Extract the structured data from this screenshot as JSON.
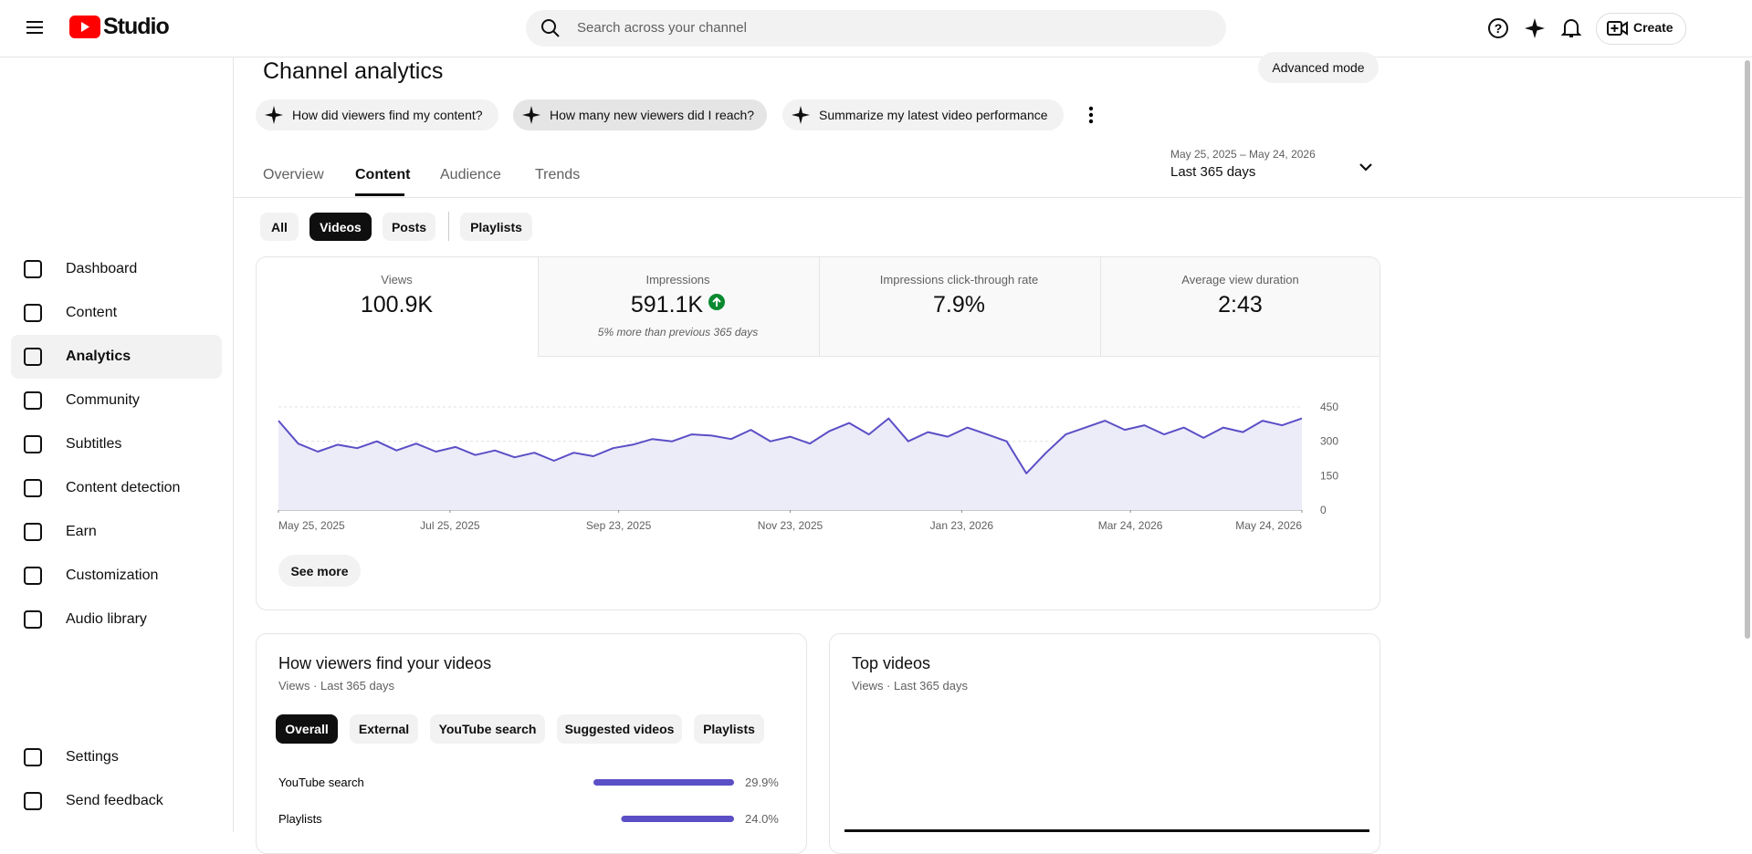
{
  "header": {
    "logo": "Studio",
    "search_placeholder": "Search across your channel",
    "create": "Create"
  },
  "sidebar": {
    "nav": [
      "Dashboard",
      "Content",
      "Analytics",
      "Community",
      "Subtitles",
      "Content detection",
      "Earn",
      "Customization",
      "Audio library"
    ],
    "footer": [
      "Settings",
      "Send feedback"
    ]
  },
  "page": {
    "title": "Channel analytics",
    "advanced_mode": "Advanced mode",
    "suggestions": [
      "How did viewers find my content?",
      "How many new viewers did I reach?",
      "Summarize my latest video performance"
    ],
    "tabs": [
      "Overview",
      "Content",
      "Audience",
      "Trends"
    ],
    "date_range": "May 25, 2025 – May 24, 2026",
    "period": "Last 365 days",
    "filters": [
      "All",
      "Videos",
      "Posts",
      "Playlists"
    ],
    "see_more": "See more"
  },
  "metrics": [
    {
      "label": "Views",
      "value": "100.9K"
    },
    {
      "label": "Impressions",
      "value": "591.1K",
      "note": "5% more than previous 365 days"
    },
    {
      "label": "Impressions click-through rate",
      "value": "7.9%"
    },
    {
      "label": "Average view duration",
      "value": "2:43"
    }
  ],
  "chart_data": [
    {
      "type": "area",
      "x": [
        "2025-05-25",
        "2025-06-01",
        "2025-06-08",
        "2025-06-15",
        "2025-06-22",
        "2025-06-29",
        "2025-07-06",
        "2025-07-13",
        "2025-07-20",
        "2025-07-27",
        "2025-08-03",
        "2025-08-10",
        "2025-08-17",
        "2025-08-24",
        "2025-08-31",
        "2025-09-07",
        "2025-09-14",
        "2025-09-21",
        "2025-09-28",
        "2025-10-05",
        "2025-10-12",
        "2025-10-19",
        "2025-10-26",
        "2025-11-02",
        "2025-11-09",
        "2025-11-16",
        "2025-11-23",
        "2025-11-30",
        "2025-12-07",
        "2025-12-14",
        "2025-12-21",
        "2025-12-28",
        "2026-01-04",
        "2026-01-11",
        "2026-01-18",
        "2026-01-25",
        "2026-02-01",
        "2026-02-08",
        "2026-02-15",
        "2026-02-22",
        "2026-03-01",
        "2026-03-08",
        "2026-03-15",
        "2026-03-22",
        "2026-03-29",
        "2026-04-05",
        "2026-04-12",
        "2026-04-19",
        "2026-04-26",
        "2026-05-03",
        "2026-05-10",
        "2026-05-17",
        "2026-05-24"
      ],
      "values": [
        390,
        290,
        255,
        285,
        270,
        300,
        260,
        290,
        255,
        275,
        240,
        260,
        230,
        250,
        215,
        250,
        235,
        270,
        285,
        310,
        300,
        330,
        325,
        310,
        350,
        300,
        320,
        290,
        345,
        380,
        330,
        400,
        300,
        340,
        320,
        360,
        330,
        300,
        160,
        250,
        330,
        360,
        390,
        350,
        370,
        330,
        360,
        315,
        360,
        340,
        390,
        370,
        400
      ],
      "color": "#5b4fc6",
      "fill_color": "#ecebf8",
      "xlim": [
        "2025-05-25",
        "2026-05-24"
      ],
      "xticks": [
        {
          "value": "2025-05-25",
          "label": "May 25, 2025"
        },
        {
          "value": "2025-07-25",
          "label": "Jul 25, 2025"
        },
        {
          "value": "2025-09-23",
          "label": "Sep 23, 2025"
        },
        {
          "value": "2025-11-23",
          "label": "Nov 23, 2025"
        },
        {
          "value": "2026-01-23",
          "label": "Jan 23, 2026"
        },
        {
          "value": "2026-03-24",
          "label": "Mar 24, 2026"
        },
        {
          "value": "2026-05-24",
          "label": "May 24, 2026"
        }
      ],
      "ylim": [
        0,
        450
      ],
      "yticks": [
        0,
        150,
        300,
        450
      ],
      "y_axis_side": "right",
      "grid": true
    },
    {
      "type": "bar",
      "orientation": "horizontal",
      "title": "How viewers find your videos",
      "subtitle": "Views · Last 365 days",
      "categories": [
        "YouTube search",
        "Playlists"
      ],
      "values": [
        29.9,
        24.0
      ],
      "value_labels": [
        "29.9%",
        "24.0%"
      ],
      "color": "#5b4fc6"
    }
  ],
  "traffic_filters": [
    "Overall",
    "External",
    "YouTube search",
    "Suggested videos",
    "Playlists"
  ],
  "top_videos": {
    "title": "Top videos",
    "subtitle": "Views · Last 365 days"
  }
}
